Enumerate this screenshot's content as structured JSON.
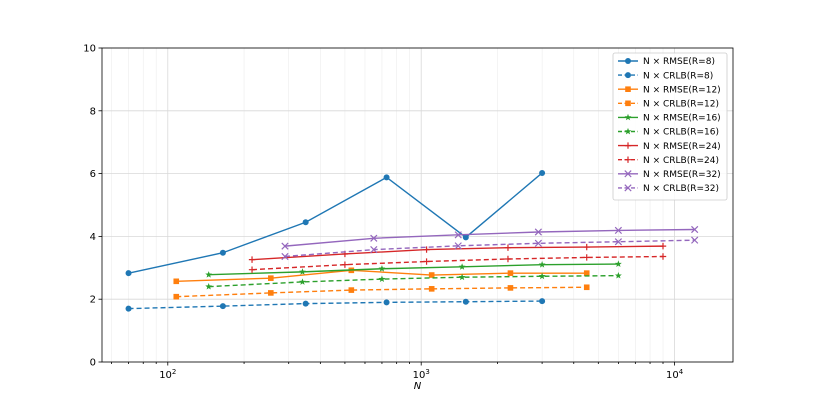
{
  "chart_data": {
    "type": "line",
    "title": "",
    "xlabel": "N",
    "ylabel": "",
    "xscale": "log",
    "xlim": [
      55,
      17000
    ],
    "ylim": [
      0,
      10
    ],
    "x_tick_labels": [
      {
        "base": "10",
        "exp": "2",
        "value": 100
      },
      {
        "base": "10",
        "exp": "3",
        "value": 1000
      },
      {
        "base": "10",
        "exp": "4",
        "value": 10000
      }
    ],
    "y_ticks": [
      0,
      2,
      4,
      6,
      8,
      10
    ],
    "y_tick_labels": [
      "0",
      "2",
      "4",
      "6",
      "8",
      "10"
    ],
    "grid": true,
    "legend_position": "top-right",
    "legend_prefix": "N × ",
    "series": [
      {
        "name": "RMSE(R=8)",
        "color": "#1f77b4",
        "marker": "circle",
        "dash": false,
        "x": [
          70,
          165,
          350,
          730,
          1500,
          3000
        ],
        "y": [
          2.83,
          3.48,
          4.45,
          5.88,
          3.97,
          6.02
        ]
      },
      {
        "name": "CRLB(R=8)",
        "color": "#1f77b4",
        "marker": "circle",
        "dash": true,
        "x": [
          70,
          165,
          350,
          730,
          1500,
          3000
        ],
        "y": [
          1.7,
          1.78,
          1.86,
          1.9,
          1.92,
          1.94
        ]
      },
      {
        "name": "RMSE(R=12)",
        "color": "#ff7f0e",
        "marker": "square",
        "dash": false,
        "x": [
          108,
          255,
          530,
          1100,
          2250,
          4500
        ],
        "y": [
          2.57,
          2.67,
          2.92,
          2.77,
          2.83,
          2.83
        ]
      },
      {
        "name": "CRLB(R=12)",
        "color": "#ff7f0e",
        "marker": "square",
        "dash": true,
        "x": [
          108,
          255,
          530,
          1100,
          2250,
          4500
        ],
        "y": [
          2.08,
          2.2,
          2.29,
          2.33,
          2.36,
          2.38
        ]
      },
      {
        "name": "RMSE(R=16)",
        "color": "#2ca02c",
        "marker": "star",
        "dash": false,
        "x": [
          145,
          340,
          700,
          1450,
          3000,
          6000
        ],
        "y": [
          2.78,
          2.87,
          2.97,
          3.03,
          3.1,
          3.12
        ]
      },
      {
        "name": "CRLB(R=16)",
        "color": "#2ca02c",
        "marker": "star",
        "dash": true,
        "x": [
          145,
          340,
          700,
          1450,
          3000,
          6000
        ],
        "y": [
          2.4,
          2.55,
          2.64,
          2.7,
          2.73,
          2.75
        ]
      },
      {
        "name": "RMSE(R=24)",
        "color": "#d62728",
        "marker": "plus",
        "dash": false,
        "x": [
          215,
          500,
          1050,
          2200,
          4500,
          9000
        ],
        "y": [
          3.26,
          3.44,
          3.58,
          3.64,
          3.66,
          3.69
        ]
      },
      {
        "name": "CRLB(R=24)",
        "color": "#d62728",
        "marker": "plus",
        "dash": true,
        "x": [
          215,
          500,
          1050,
          2200,
          4500,
          9000
        ],
        "y": [
          2.94,
          3.1,
          3.2,
          3.28,
          3.33,
          3.36
        ]
      },
      {
        "name": "RMSE(R=32)",
        "color": "#9467bd",
        "marker": "x",
        "dash": false,
        "x": [
          290,
          650,
          1400,
          2900,
          6000,
          12000
        ],
        "y": [
          3.69,
          3.94,
          4.05,
          4.14,
          4.19,
          4.22
        ]
      },
      {
        "name": "CRLB(R=32)",
        "color": "#9467bd",
        "marker": "x",
        "dash": true,
        "x": [
          290,
          650,
          1400,
          2900,
          6000,
          12000
        ],
        "y": [
          3.36,
          3.58,
          3.7,
          3.78,
          3.83,
          3.88
        ]
      }
    ]
  }
}
